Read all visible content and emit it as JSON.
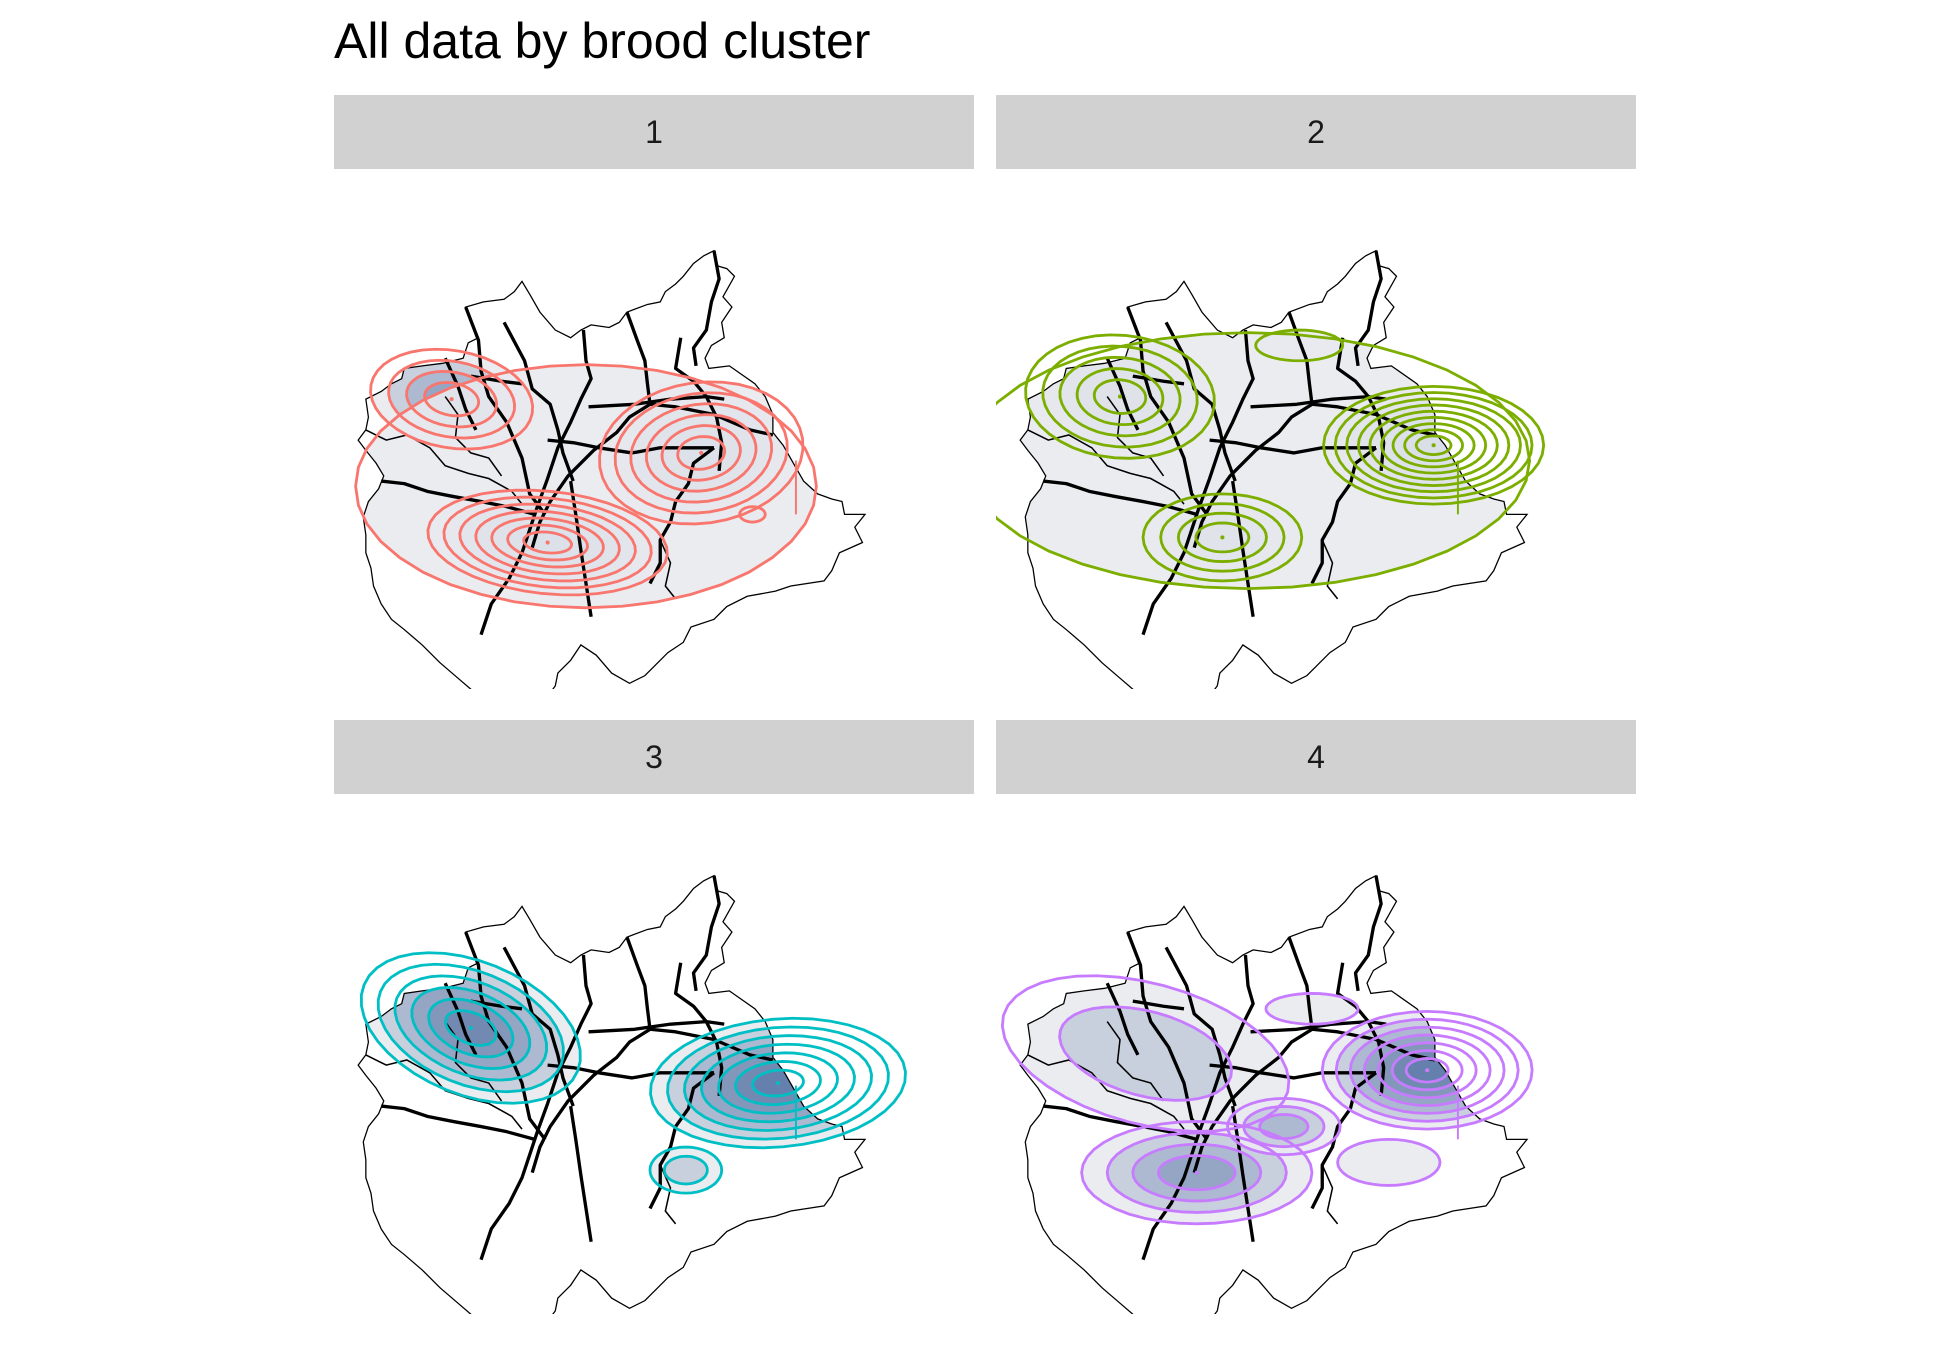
{
  "title": "All data by brood cluster",
  "panels": [
    {
      "label": "1",
      "color": "#F8766D"
    },
    {
      "label": "2",
      "color": "#7CAE00"
    },
    {
      "label": "3",
      "color": "#00BFC4"
    },
    {
      "label": "4",
      "color": "#C77CFF"
    }
  ],
  "style": {
    "fill_low": "#e9eaee",
    "fill_high": "#2b5591",
    "road_color": "#000000",
    "outline_color": "#000000"
  }
}
